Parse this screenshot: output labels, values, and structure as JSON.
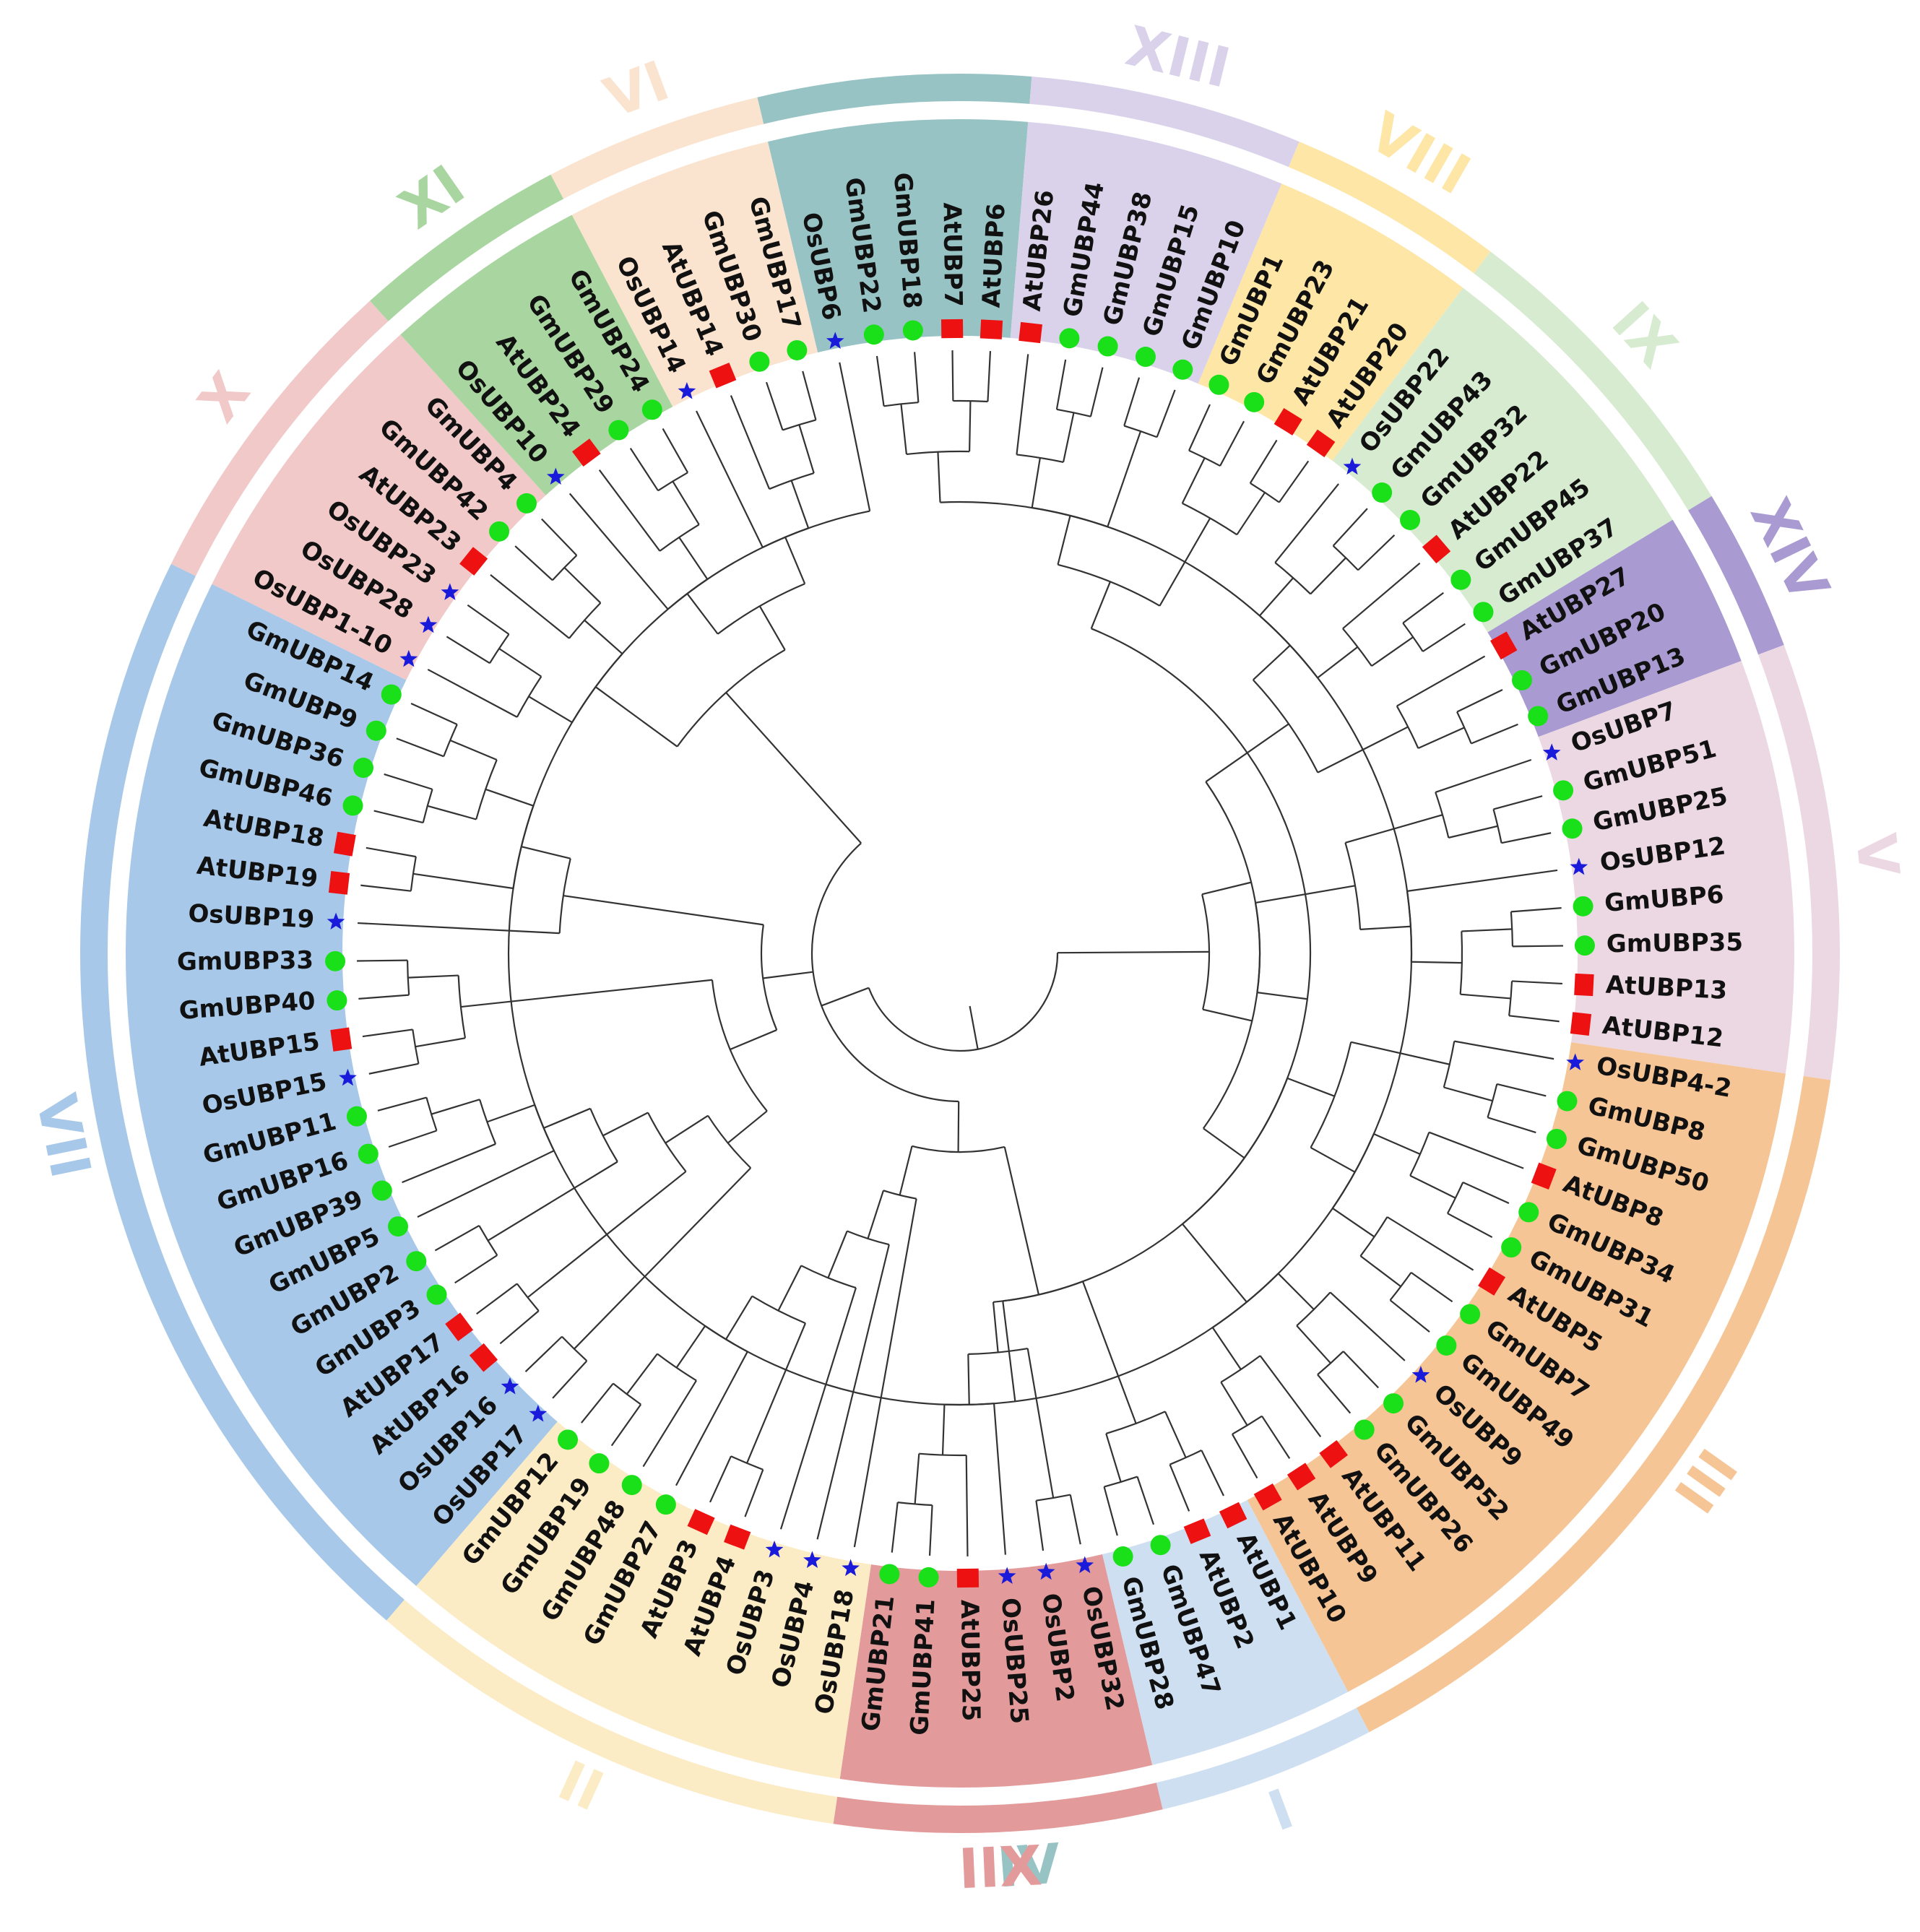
{
  "figure": {
    "title": "",
    "type": "circular phylogenetic tree",
    "species_markers": {
      "Gm": {
        "shape": "circle",
        "color": "#19e019"
      },
      "At": {
        "shape": "square",
        "color": "#ee1111"
      },
      "Os": {
        "shape": "star",
        "color": "#1a1adb"
      }
    }
  },
  "leaves": [
    "GmUBP22",
    "GmUBP18",
    "AtUBP7",
    "AtUBP6",
    "AtUBP26",
    "GmUBP44",
    "GmUBP38",
    "GmUBP15",
    "GmUBP10",
    "GmUBP1",
    "GmUBP23",
    "AtUBP21",
    "AtUBP20",
    "OsUBP22",
    "GmUBP43",
    "GmUBP32",
    "AtUBP22",
    "GmUBP45",
    "GmUBP37",
    "AtUBP27",
    "GmUBP20",
    "GmUBP13",
    "OsUBP7",
    "GmUBP51",
    "GmUBP25",
    "OsUBP12",
    "GmUBP6",
    "GmUBP35",
    "AtUBP13",
    "AtUBP12",
    "OsUBP4-2",
    "GmUBP8",
    "GmUBP50",
    "AtUBP8",
    "GmUBP34",
    "GmUBP31",
    "AtUBP5",
    "GmUBP7",
    "GmUBP49",
    "OsUBP9",
    "GmUBP52",
    "GmUBP26",
    "AtUBP11",
    "AtUBP9",
    "AtUBP10",
    "AtUBP1",
    "AtUBP2",
    "GmUBP47",
    "GmUBP28",
    "OsUBP32",
    "OsUBP2",
    "OsUBP25",
    "AtUBP25",
    "GmUBP41",
    "GmUBP21",
    "OsUBP18",
    "OsUBP4",
    "OsUBP3",
    "AtUBP4",
    "AtUBP3",
    "GmUBP27",
    "GmUBP48",
    "GmUBP19",
    "GmUBP12",
    "OsUBP17",
    "OsUBP16",
    "AtUBP16",
    "AtUBP17",
    "GmUBP3",
    "GmUBP2",
    "GmUBP5",
    "GmUBP39",
    "GmUBP16",
    "GmUBP11",
    "OsUBP15",
    "AtUBP15",
    "GmUBP40",
    "GmUBP33",
    "OsUBP19",
    "AtUBP19",
    "AtUBP18",
    "GmUBP46",
    "GmUBP36",
    "GmUBP9",
    "GmUBP14",
    "OsUBP1-10",
    "OsUBP28",
    "OsUBP23",
    "AtUBP23",
    "GmUBP42",
    "GmUBP4",
    "OsUBP10",
    "AtUBP24",
    "GmUBP29",
    "GmUBP24",
    "OsUBP14",
    "AtUBP14",
    "GmUBP30",
    "GmUBP17",
    "OsUBP6"
  ],
  "groups": [
    {
      "label": "IV",
      "color": "#97c3c5",
      "first": "OsUBP6",
      "last": "AtUBP6"
    },
    {
      "label": "XIII",
      "color": "#d9d2ea",
      "first": "AtUBP26",
      "last": "GmUBP10"
    },
    {
      "label": "VIII",
      "color": "#fde6a6",
      "first": "GmUBP1",
      "last": "AtUBP20"
    },
    {
      "label": "IX",
      "color": "#d7ebd1",
      "first": "OsUBP22",
      "last": "GmUBP37"
    },
    {
      "label": "XIV",
      "color": "#a99bd1",
      "first": "AtUBP27",
      "last": "GmUBP13"
    },
    {
      "label": "V",
      "color": "#ecd8e3",
      "first": "OsUBP7",
      "last": "AtUBP12"
    },
    {
      "label": "III",
      "color": "#f6c596",
      "first": "OsUBP4-2",
      "last": "AtUBP10"
    },
    {
      "label": "I",
      "color": "#cddff1",
      "first": "AtUBP1",
      "last": "GmUBP28"
    },
    {
      "label": "IIX",
      "color": "#e39a9a",
      "first": "OsUBP32",
      "last": "GmUBP21"
    },
    {
      "label": "II",
      "color": "#fcecc5",
      "first": "OsUBP18",
      "last": "GmUBP12"
    },
    {
      "label": "VII",
      "color": "#a7c8e8",
      "first": "OsUBP17",
      "last": "GmUBP14"
    },
    {
      "label": "X",
      "color": "#f1c9c9",
      "first": "OsUBP1-10",
      "last": "GmUBP4"
    },
    {
      "label": "XI",
      "color": "#a9d6a0",
      "first": "OsUBP10",
      "last": "GmUBP24"
    },
    {
      "label": "VI",
      "color": "#fbe4cf",
      "first": "OsUBP14",
      "last": "GmUBP17"
    }
  ],
  "tree": [
    [
      [
        [
          [
            "OsUBP6",
            [
              [
                "GmUBP22",
                "GmUBP18"
              ],
              [
                "AtUBP7",
                "AtUBP6"
              ]
            ]
          ],
          [
            [
              [
                "AtUBP26",
                [
                  "GmUBP44",
                  "GmUBP38"
                ]
              ],
              [
                "GmUBP15",
                "GmUBP10"
              ]
            ],
            [
              [
                "GmUBP1",
                "GmUBP23"
              ],
              [
                "AtUBP21",
                "AtUBP20"
              ]
            ]
          ]
        ],
        [
          [
            [
              "OsUBP22",
              [
                "GmUBP43",
                "GmUBP32"
              ]
            ],
            [
              "AtUBP22",
              [
                "GmUBP45",
                "GmUBP37"
              ]
            ]
          ],
          [
            "AtUBP27",
            [
              "GmUBP20",
              "GmUBP13"
            ]
          ]
        ]
      ],
      [
        [
          [
            "OsUBP7",
            [
              "GmUBP51",
              "GmUBP25"
            ]
          ],
          [
            "OsUBP12",
            [
              [
                "GmUBP6",
                "GmUBP35"
              ],
              [
                "AtUBP13",
                "AtUBP12"
              ]
            ]
          ]
        ],
        [
          [
            [
              "OsUBP4-2",
              [
                "GmUBP8",
                "GmUBP50"
              ]
            ],
            [
              [
                "AtUBP8",
                [
                  "GmUBP34",
                  "GmUBP31"
                ]
              ],
              [
                "AtUBP5",
                [
                  "GmUBP7",
                  "GmUBP49"
                ]
              ]
            ]
          ],
          [
            [
              "OsUBP9",
              [
                "GmUBP52",
                "GmUBP26"
              ]
            ],
            [
              "AtUBP11",
              [
                "AtUBP9",
                "AtUBP10"
              ]
            ]
          ]
        ]
      ]
    ],
    [
      [
        [
          [
            [
              "AtUBP1",
              "AtUBP2"
            ],
            [
              "GmUBP47",
              "GmUBP28"
            ]
          ],
          [
            [
              "OsUBP32",
              "OsUBP2"
            ],
            [
              "OsUBP25",
              [
                "AtUBP25",
                [
                  "GmUBP41",
                  "GmUBP21"
                ]
              ]
            ]
          ]
        ],
        [
          "OsUBP18",
          [
            "OsUBP4",
            [
              "OsUBP3",
              [
                [
                  "AtUBP4",
                  "AtUBP3"
                ],
                [
                  "GmUBP27",
                  [
                    "GmUBP48",
                    [
                      "GmUBP19",
                      "GmUBP12"
                    ]
                  ]
                ]
              ]
            ]
          ]
        ]
      ],
      [
        [
          [
            [
              "OsUBP17",
              "OsUBP16"
            ],
            [
              [
                "AtUBP16",
                "AtUBP17"
              ],
              [
                [
                  "GmUBP3",
                  "GmUBP2"
                ],
                [
                  "GmUBP5",
                  [
                    "GmUBP39",
                    [
                      "GmUBP16",
                      "GmUBP11"
                    ]
                  ]
                ]
              ]
            ]
          ],
          [
            [
              "OsUBP15",
              "AtUBP15"
            ],
            [
              "GmUBP40",
              "GmUBP33"
            ]
          ]
        ],
        [
          "OsUBP19",
          [
            [
              "AtUBP19",
              "AtUBP18"
            ],
            [
              [
                "GmUBP46",
                "GmUBP36"
              ],
              [
                "GmUBP9",
                "GmUBP14"
              ]
            ]
          ]
        ]
      ],
      [
        [
          [
            "OsUBP1-10",
            [
              "OsUBP28",
              "OsUBP23"
            ]
          ],
          [
            "AtUBP23",
            [
              "GmUBP42",
              "GmUBP4"
            ]
          ]
        ],
        [
          [
            "OsUBP10",
            [
              "AtUBP24",
              [
                "GmUBP29",
                "GmUBP24"
              ]
            ]
          ],
          [
            "OsUBP14",
            [
              "AtUBP14",
              [
                "GmUBP30",
                "GmUBP17"
              ]
            ]
          ]
        ]
      ]
    ]
  ]
}
